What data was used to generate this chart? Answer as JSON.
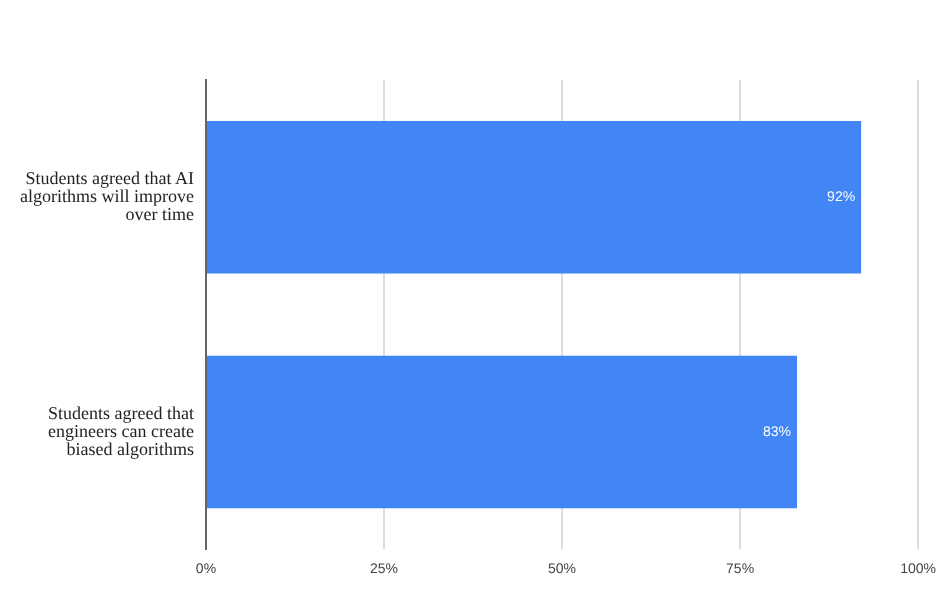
{
  "chart_data": {
    "type": "bar",
    "orientation": "horizontal",
    "categories": [
      "Students agreed that AI algorithms will improve over time",
      "Students agreed that engineers can create biased algorithms"
    ],
    "values": [
      92,
      83
    ],
    "color": "#4285f4",
    "value_labels": [
      "92%",
      "83%"
    ],
    "xlim": [
      0,
      100
    ],
    "xticks": [
      {
        "value": 0,
        "label": "0%"
      },
      {
        "value": 25,
        "label": "25%"
      },
      {
        "value": 50,
        "label": "50%"
      },
      {
        "value": 75,
        "label": "75%"
      },
      {
        "value": 100,
        "label": "100%"
      }
    ],
    "grid": "x",
    "legend": false
  }
}
